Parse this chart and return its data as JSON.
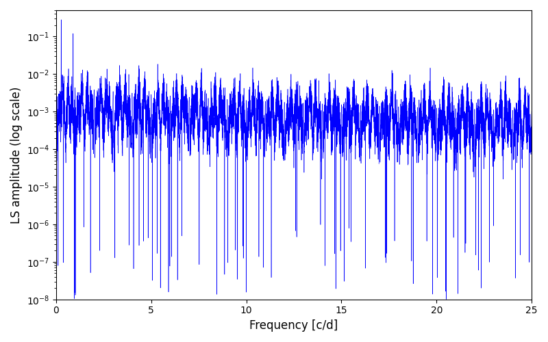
{
  "title": "",
  "xlabel": "Frequency [c/d]",
  "ylabel": "LS amplitude (log scale)",
  "line_color": "#0000ff",
  "background_color": "#ffffff",
  "xlim": [
    0,
    25
  ],
  "ylim": [
    1e-08,
    0.5
  ],
  "xticks": [
    0,
    5,
    10,
    15,
    20,
    25
  ],
  "seed": 12345,
  "n_points": 10000,
  "figsize": [
    8.0,
    5.0
  ],
  "dpi": 100
}
